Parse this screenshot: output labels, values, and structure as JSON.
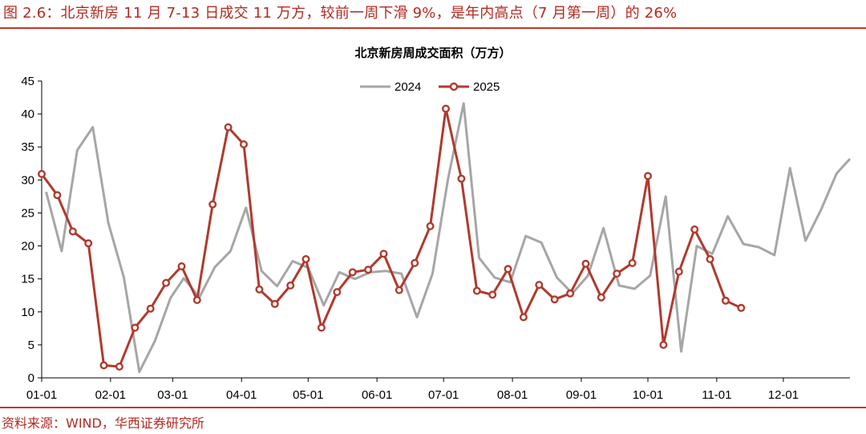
{
  "figure": {
    "title": "图 2.6：北京新房 11 月 7-13 日成交 11 万方，较前一周下滑 9%，是年内高点（7 月第一周）的 26%",
    "source": "资料来源：WIND，华西证券研究所"
  },
  "colors": {
    "accent": "#c0392b",
    "series_2024": "#a6a6a6",
    "series_2025": "#b03a2e"
  },
  "chart_data": {
    "type": "line",
    "title": "北京新房周成交面积（万方）",
    "xlabel": "",
    "ylabel": "",
    "ylim": [
      0,
      45
    ],
    "yticks": [
      0,
      5,
      10,
      15,
      20,
      25,
      30,
      35,
      40,
      45
    ],
    "xlim": [
      "01-01",
      "12-31"
    ],
    "xticks": [
      "01-01",
      "02-01",
      "03-01",
      "04-01",
      "05-01",
      "06-01",
      "07-01",
      "08-01",
      "09-01",
      "10-01",
      "11-01",
      "12-01"
    ],
    "legend_position": "top-center",
    "grid": false,
    "series": [
      {
        "name": "2024",
        "marker": "none",
        "points": [
          [
            "01-03",
            28.2
          ],
          [
            "01-10",
            19.2
          ],
          [
            "01-17",
            34.5
          ],
          [
            "01-24",
            38.0
          ],
          [
            "01-31",
            23.5
          ],
          [
            "02-07",
            15.2
          ],
          [
            "02-14",
            0.9
          ],
          [
            "02-21",
            5.6
          ],
          [
            "02-28",
            12.1
          ],
          [
            "03-06",
            15.1
          ],
          [
            "03-13",
            12.2
          ],
          [
            "03-20",
            16.8
          ],
          [
            "03-27",
            19.2
          ],
          [
            "04-03",
            25.8
          ],
          [
            "04-10",
            16.2
          ],
          [
            "04-17",
            13.9
          ],
          [
            "04-24",
            17.7
          ],
          [
            "05-01",
            16.7
          ],
          [
            "05-08",
            11.0
          ],
          [
            "05-15",
            16.0
          ],
          [
            "05-22",
            15.0
          ],
          [
            "05-29",
            16.0
          ],
          [
            "06-05",
            16.2
          ],
          [
            "06-12",
            15.8
          ],
          [
            "06-19",
            9.2
          ],
          [
            "06-26",
            15.8
          ],
          [
            "07-03",
            30.2
          ],
          [
            "07-10",
            41.6
          ],
          [
            "07-17",
            18.2
          ],
          [
            "07-24",
            15.2
          ],
          [
            "07-31",
            14.5
          ],
          [
            "08-07",
            21.5
          ],
          [
            "08-14",
            20.5
          ],
          [
            "08-21",
            15.2
          ],
          [
            "08-28",
            12.8
          ],
          [
            "09-04",
            15.5
          ],
          [
            "09-11",
            22.7
          ],
          [
            "09-18",
            14.0
          ],
          [
            "09-25",
            13.5
          ],
          [
            "10-02",
            15.5
          ],
          [
            "10-09",
            27.5
          ],
          [
            "10-16",
            4.0
          ],
          [
            "10-23",
            20.0
          ],
          [
            "10-30",
            18.8
          ],
          [
            "11-06",
            24.5
          ],
          [
            "11-13",
            20.3
          ],
          [
            "11-20",
            19.8
          ],
          [
            "11-27",
            18.6
          ],
          [
            "12-04",
            31.8
          ],
          [
            "12-11",
            20.8
          ],
          [
            "12-18",
            25.5
          ],
          [
            "12-25",
            31.0
          ],
          [
            "12-31",
            33.2
          ]
        ]
      },
      {
        "name": "2025",
        "marker": "circle",
        "points": [
          [
            "01-01",
            30.9
          ],
          [
            "01-08",
            27.7
          ],
          [
            "01-15",
            22.2
          ],
          [
            "01-22",
            20.4
          ],
          [
            "01-29",
            1.9
          ],
          [
            "02-05",
            1.7
          ],
          [
            "02-12",
            7.6
          ],
          [
            "02-19",
            10.5
          ],
          [
            "02-26",
            14.4
          ],
          [
            "03-05",
            16.9
          ],
          [
            "03-12",
            11.8
          ],
          [
            "03-19",
            26.3
          ],
          [
            "03-26",
            38.0
          ],
          [
            "04-02",
            35.4
          ],
          [
            "04-09",
            13.4
          ],
          [
            "04-16",
            11.2
          ],
          [
            "04-23",
            14.0
          ],
          [
            "04-30",
            18.0
          ],
          [
            "05-07",
            7.6
          ],
          [
            "05-14",
            13.0
          ],
          [
            "05-21",
            16.0
          ],
          [
            "05-28",
            16.4
          ],
          [
            "06-04",
            18.8
          ],
          [
            "06-11",
            13.3
          ],
          [
            "06-18",
            17.4
          ],
          [
            "06-25",
            23.0
          ],
          [
            "07-02",
            40.8
          ],
          [
            "07-09",
            30.2
          ],
          [
            "07-16",
            13.2
          ],
          [
            "07-23",
            12.6
          ],
          [
            "07-30",
            16.5
          ],
          [
            "08-06",
            9.2
          ],
          [
            "08-13",
            14.1
          ],
          [
            "08-20",
            11.9
          ],
          [
            "08-27",
            12.8
          ],
          [
            "09-03",
            17.3
          ],
          [
            "09-10",
            12.2
          ],
          [
            "09-17",
            15.8
          ],
          [
            "09-24",
            17.4
          ],
          [
            "10-01",
            30.6
          ],
          [
            "10-08",
            5.0
          ],
          [
            "10-15",
            16.1
          ],
          [
            "10-22",
            22.5
          ],
          [
            "10-29",
            18.0
          ],
          [
            "11-05",
            11.7
          ],
          [
            "11-12",
            10.6
          ]
        ]
      }
    ]
  }
}
